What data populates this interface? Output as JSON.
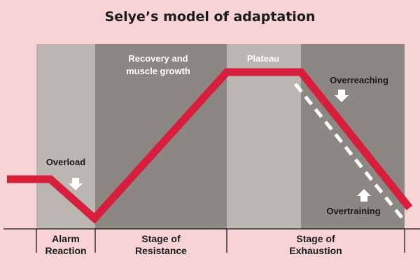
{
  "title": "Selye’s model of adaptation",
  "colors": {
    "background": "#f8d3d6",
    "panel_light": "#bbb6b2",
    "panel_dark": "#8c8782",
    "red_line": "#d81e3d",
    "dashed_line": "#ffffff",
    "text_dark": "#1a1a1a"
  },
  "panel_labels": {
    "recovery_line1": "Recovery and",
    "recovery_line2": "muscle growth",
    "plateau": "Plateau"
  },
  "annotations": {
    "overload": "Overload",
    "overreaching": "Overreaching",
    "overtraining": "Overtraining"
  },
  "stages": {
    "alarm_line1": "Alarm",
    "alarm_line2": "Reaction",
    "resistance_line1": "Stage of",
    "resistance_line2": "Resistance",
    "exhaustion_line1": "Stage of",
    "exhaustion_line2": "Exhaustion"
  },
  "icons": {
    "overload": "arrow-down-icon",
    "overreaching": "arrow-down-icon",
    "overtraining": "arrow-up-icon"
  }
}
